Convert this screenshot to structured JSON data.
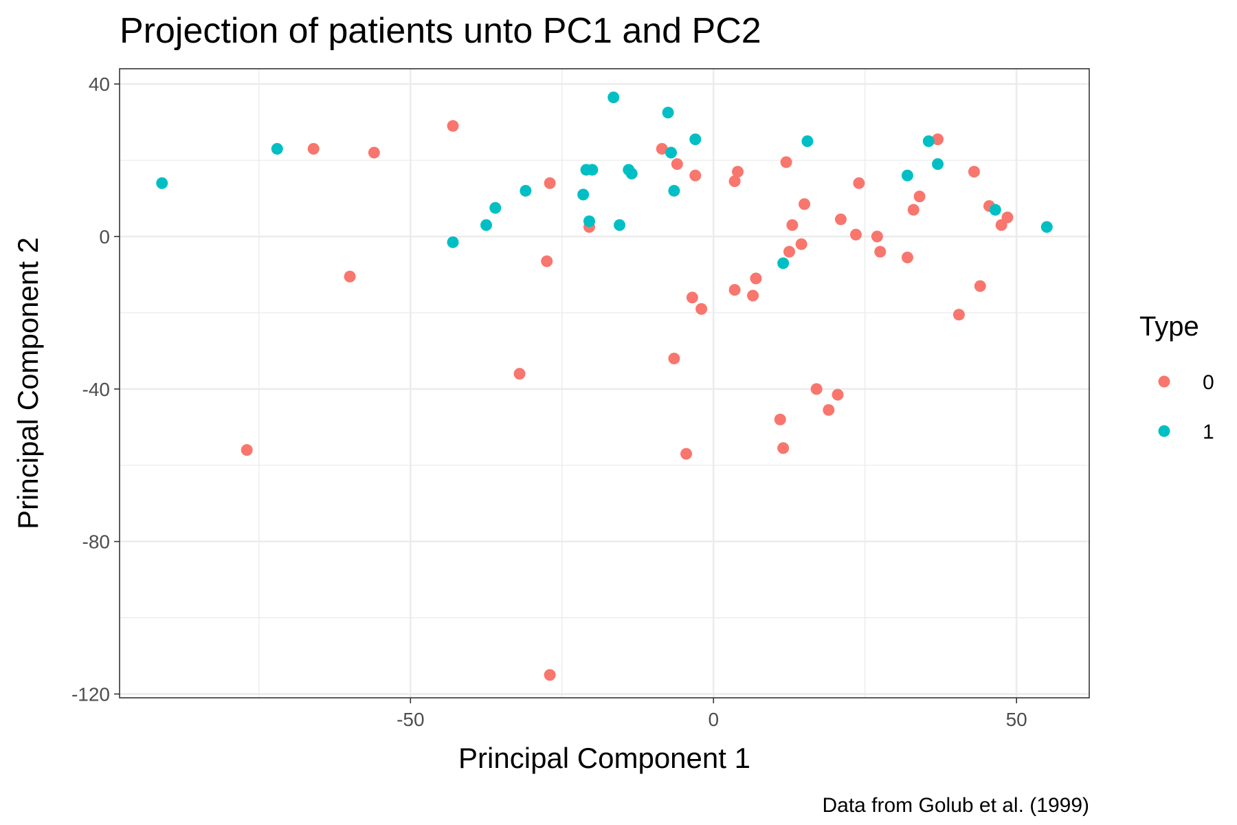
{
  "chart_data": {
    "type": "scatter",
    "title": "Projection of patients unto PC1 and PC2",
    "xlabel": "Principal Component 1",
    "ylabel": "Principal Component 2",
    "caption": "Data from Golub et al. (1999)",
    "xlim": [
      -98,
      62
    ],
    "ylim": [
      -121,
      44
    ],
    "x_ticks": [
      -50,
      0,
      50
    ],
    "y_ticks": [
      40,
      0,
      -40,
      -80,
      -120
    ],
    "grid": true,
    "legend": {
      "title": "Type",
      "placement": "right"
    },
    "series": [
      {
        "name": "0",
        "color": "#F8766D",
        "points": [
          [
            -66,
            23
          ],
          [
            -56,
            22
          ],
          [
            -43,
            29
          ],
          [
            -60,
            -10.5
          ],
          [
            -77,
            -56
          ],
          [
            -32,
            -36
          ],
          [
            -27,
            14
          ],
          [
            -27.5,
            -6.5
          ],
          [
            -27,
            -115
          ],
          [
            -20.5,
            2.5
          ],
          [
            -8.5,
            23
          ],
          [
            -6,
            19
          ],
          [
            -3,
            16
          ],
          [
            -6.5,
            -32
          ],
          [
            -3.5,
            -16
          ],
          [
            -2,
            -19
          ],
          [
            -4.5,
            -57
          ],
          [
            3.5,
            14.5
          ],
          [
            4,
            17
          ],
          [
            3.5,
            -14
          ],
          [
            6.5,
            -15.5
          ],
          [
            7,
            -11
          ],
          [
            12,
            19.5
          ],
          [
            13,
            3
          ],
          [
            12.5,
            -4
          ],
          [
            14.5,
            -2
          ],
          [
            15,
            8.5
          ],
          [
            17,
            -40
          ],
          [
            19,
            -45.5
          ],
          [
            20.5,
            -41.5
          ],
          [
            21,
            4.5
          ],
          [
            23.5,
            0.5
          ],
          [
            24,
            14
          ],
          [
            11,
            -48
          ],
          [
            11.5,
            -55.5
          ],
          [
            27,
            0
          ],
          [
            27.5,
            -4
          ],
          [
            32,
            -5.5
          ],
          [
            33,
            7
          ],
          [
            34,
            10.5
          ],
          [
            37,
            25.5
          ],
          [
            40.5,
            -20.5
          ],
          [
            43,
            17
          ],
          [
            44,
            -13
          ],
          [
            45.5,
            8
          ],
          [
            47.5,
            3
          ],
          [
            48.5,
            5
          ]
        ]
      },
      {
        "name": "1",
        "color": "#00BFC4",
        "points": [
          [
            -91,
            14
          ],
          [
            -72,
            23
          ],
          [
            -43,
            -1.5
          ],
          [
            -37.5,
            3
          ],
          [
            -36,
            7.5
          ],
          [
            -31,
            12
          ],
          [
            -21.5,
            11
          ],
          [
            -21,
            17.5
          ],
          [
            -20,
            17.5
          ],
          [
            -20.5,
            4
          ],
          [
            -16.5,
            36.5
          ],
          [
            -15.5,
            3
          ],
          [
            -14,
            17.5
          ],
          [
            -13.5,
            16.5
          ],
          [
            -7.5,
            32.5
          ],
          [
            -7,
            22
          ],
          [
            -6.5,
            12
          ],
          [
            -3,
            25.5
          ],
          [
            11.5,
            -7
          ],
          [
            15.5,
            25
          ],
          [
            32,
            16
          ],
          [
            35.5,
            25
          ],
          [
            37,
            19
          ],
          [
            46.5,
            7
          ],
          [
            55,
            2.5
          ]
        ]
      }
    ]
  }
}
